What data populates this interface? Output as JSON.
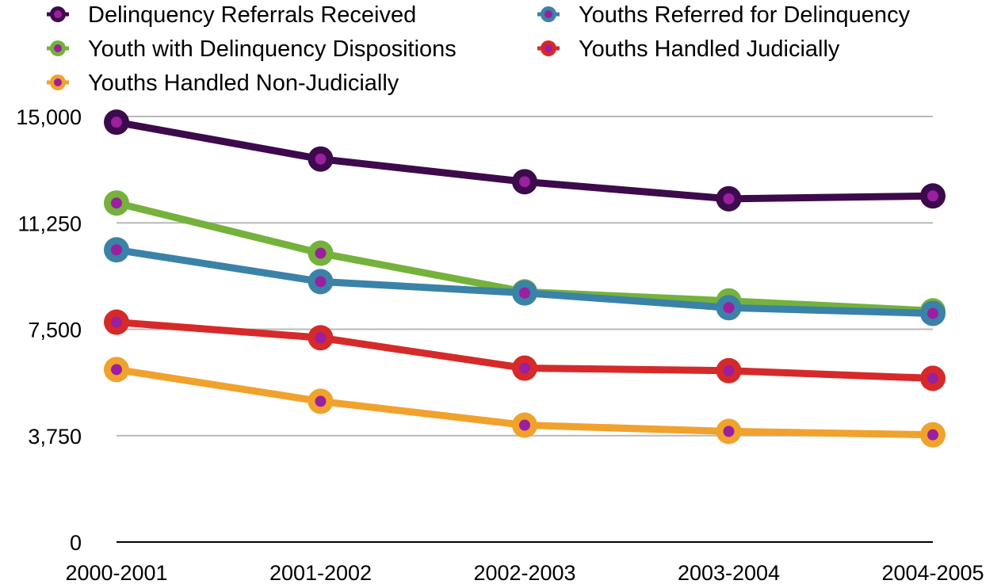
{
  "chart_data": {
    "type": "line",
    "title": "",
    "xlabel": "",
    "ylabel": "",
    "categories": [
      "2000-2001",
      "2001-2002",
      "2002-2003",
      "2003-2004",
      "2004-2005"
    ],
    "ylim": [
      0,
      15000
    ],
    "yticks": [
      0,
      3750,
      7500,
      11250,
      15000
    ],
    "ytick_labels": [
      "0",
      "3,750",
      "7,500",
      "11,250",
      "15,000"
    ],
    "grid": true,
    "legend_position": "top",
    "marker_center_color": "#9b1f9e",
    "series": [
      {
        "name": "Delinquency Referrals Received",
        "color": "#3d0a4c",
        "values": [
          14800,
          13500,
          12700,
          12100,
          12200
        ]
      },
      {
        "name": "Youths Referred for Delinquency",
        "color": "#3a82a8",
        "values": [
          10300,
          9180,
          8780,
          8260,
          8060
        ]
      },
      {
        "name": "Youth with Delinquency Dispositions",
        "color": "#74b23c",
        "values": [
          11950,
          10180,
          8820,
          8500,
          8150
        ]
      },
      {
        "name": "Youths Handled Judicially",
        "color": "#d62a2a",
        "values": [
          7750,
          7200,
          6130,
          6040,
          5770
        ]
      },
      {
        "name": "Youths Handled Non-Judicially",
        "color": "#f0a22d",
        "values": [
          6080,
          4960,
          4120,
          3900,
          3780
        ]
      }
    ]
  }
}
